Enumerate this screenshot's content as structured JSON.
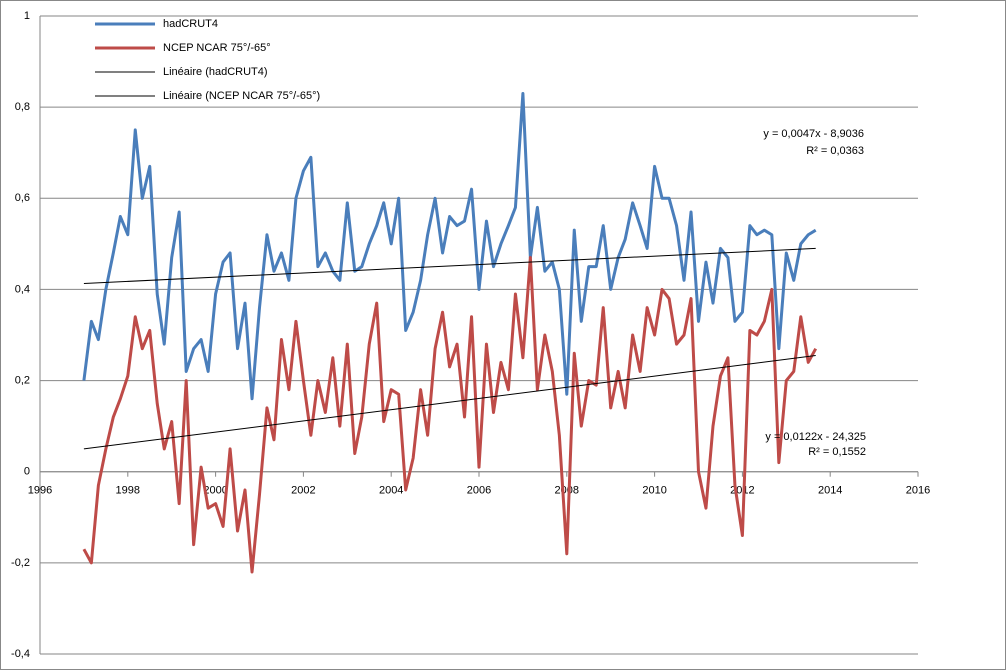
{
  "chart_data": {
    "type": "line",
    "x": [
      1997,
      1997.17,
      1997.33,
      1997.5,
      1997.67,
      1997.83,
      1998,
      1998.17,
      1998.33,
      1998.5,
      1998.67,
      1998.83,
      1999,
      1999.17,
      1999.33,
      1999.5,
      1999.67,
      1999.83,
      2000,
      2000.17,
      2000.33,
      2000.5,
      2000.67,
      2000.83,
      2001,
      2001.17,
      2001.33,
      2001.5,
      2001.67,
      2001.83,
      2002,
      2002.17,
      2002.33,
      2002.5,
      2002.67,
      2002.83,
      2003,
      2003.17,
      2003.33,
      2003.5,
      2003.67,
      2003.83,
      2004,
      2004.17,
      2004.33,
      2004.5,
      2004.67,
      2004.83,
      2005,
      2005.17,
      2005.33,
      2005.5,
      2005.67,
      2005.83,
      2006,
      2006.17,
      2006.33,
      2006.5,
      2006.67,
      2006.83,
      2007,
      2007.17,
      2007.33,
      2007.5,
      2007.67,
      2007.83,
      2008,
      2008.17,
      2008.33,
      2008.5,
      2008.67,
      2008.83,
      2009,
      2009.17,
      2009.33,
      2009.5,
      2009.67,
      2009.83,
      2010,
      2010.17,
      2010.33,
      2010.5,
      2010.67,
      2010.83,
      2011,
      2011.17,
      2011.33,
      2011.5,
      2011.67,
      2011.83,
      2012,
      2012.17,
      2012.33,
      2012.5,
      2012.67,
      2012.83,
      2013,
      2013.17,
      2013.33,
      2013.5,
      2013.67
    ],
    "series": [
      {
        "name": "hadCRUT4",
        "color": "#4a7ebb",
        "width": 3,
        "values": [
          0.2,
          0.33,
          0.29,
          0.4,
          0.48,
          0.56,
          0.52,
          0.75,
          0.6,
          0.67,
          0.39,
          0.28,
          0.47,
          0.57,
          0.22,
          0.27,
          0.29,
          0.22,
          0.39,
          0.46,
          0.48,
          0.27,
          0.37,
          0.16,
          0.36,
          0.52,
          0.44,
          0.48,
          0.42,
          0.6,
          0.66,
          0.69,
          0.45,
          0.48,
          0.44,
          0.42,
          0.59,
          0.44,
          0.45,
          0.5,
          0.54,
          0.59,
          0.5,
          0.6,
          0.31,
          0.35,
          0.42,
          0.52,
          0.6,
          0.48,
          0.56,
          0.54,
          0.55,
          0.62,
          0.4,
          0.55,
          0.45,
          0.5,
          0.54,
          0.58,
          0.83,
          0.47,
          0.58,
          0.44,
          0.46,
          0.4,
          0.17,
          0.53,
          0.33,
          0.45,
          0.45,
          0.54,
          0.4,
          0.47,
          0.51,
          0.59,
          0.54,
          0.49,
          0.67,
          0.6,
          0.6,
          0.54,
          0.42,
          0.57,
          0.33,
          0.46,
          0.37,
          0.49,
          0.47,
          0.33,
          0.35,
          0.54,
          0.52,
          0.53,
          0.52,
          0.27,
          0.48,
          0.42,
          0.5,
          0.52,
          0.53
        ]
      },
      {
        "name": "NCEP NCAR 75°/-65°",
        "color": "#be4b48",
        "width": 3,
        "values": [
          -0.17,
          -0.2,
          -0.03,
          0.05,
          0.12,
          0.16,
          0.21,
          0.34,
          0.27,
          0.31,
          0.15,
          0.05,
          0.11,
          -0.07,
          0.2,
          -0.16,
          0.01,
          -0.08,
          -0.07,
          -0.12,
          0.05,
          -0.13,
          -0.04,
          -0.22,
          -0.05,
          0.14,
          0.07,
          0.29,
          0.18,
          0.33,
          0.2,
          0.08,
          0.2,
          0.13,
          0.25,
          0.1,
          0.28,
          0.04,
          0.12,
          0.28,
          0.37,
          0.11,
          0.18,
          0.17,
          -0.04,
          0.03,
          0.18,
          0.08,
          0.27,
          0.35,
          0.23,
          0.28,
          0.12,
          0.34,
          0.01,
          0.28,
          0.13,
          0.24,
          0.18,
          0.39,
          0.25,
          0.47,
          0.18,
          0.3,
          0.22,
          0.08,
          -0.18,
          0.26,
          0.1,
          0.2,
          0.19,
          0.36,
          0.14,
          0.22,
          0.14,
          0.3,
          0.22,
          0.36,
          0.3,
          0.4,
          0.38,
          0.28,
          0.3,
          0.38,
          0.0,
          -0.08,
          0.1,
          0.21,
          0.25,
          -0.03,
          -0.14,
          0.31,
          0.3,
          0.33,
          0.4,
          0.02,
          0.2,
          0.22,
          0.34,
          0.24,
          0.27
        ]
      },
      {
        "name": "Linéaire (hadCRUT4)",
        "color": "#000000",
        "width": 1,
        "x": [
          1997,
          2013.67
        ],
        "values": [
          0.413,
          0.49
        ]
      },
      {
        "name": "Linéaire (NCEP NCAR 75°/-65°)",
        "color": "#000000",
        "width": 1,
        "x": [
          1997,
          2013.67
        ],
        "values": [
          0.05,
          0.255
        ]
      }
    ],
    "annotations": [
      "y = 0,0047x - 8,9036",
      "R² = 0,0363",
      "y = 0,0122x - 24,325",
      "R² = 0,1552"
    ],
    "xlim": [
      1996,
      2016
    ],
    "xticks": [
      1996,
      1998,
      2000,
      2002,
      2004,
      2006,
      2008,
      2010,
      2012,
      2014,
      2016
    ],
    "ylim": [
      -0.4,
      1
    ],
    "yticks": [
      {
        "value": -0.4,
        "label": "-0,4"
      },
      {
        "value": -0.2,
        "label": "-0,2"
      },
      0,
      {
        "value": 0.2,
        "label": "0,2"
      },
      {
        "value": 0.4,
        "label": "0,4"
      },
      {
        "value": 0.6,
        "label": "0,6"
      },
      {
        "value": 0.8,
        "label": "0,8"
      },
      1
    ],
    "grid": true
  }
}
